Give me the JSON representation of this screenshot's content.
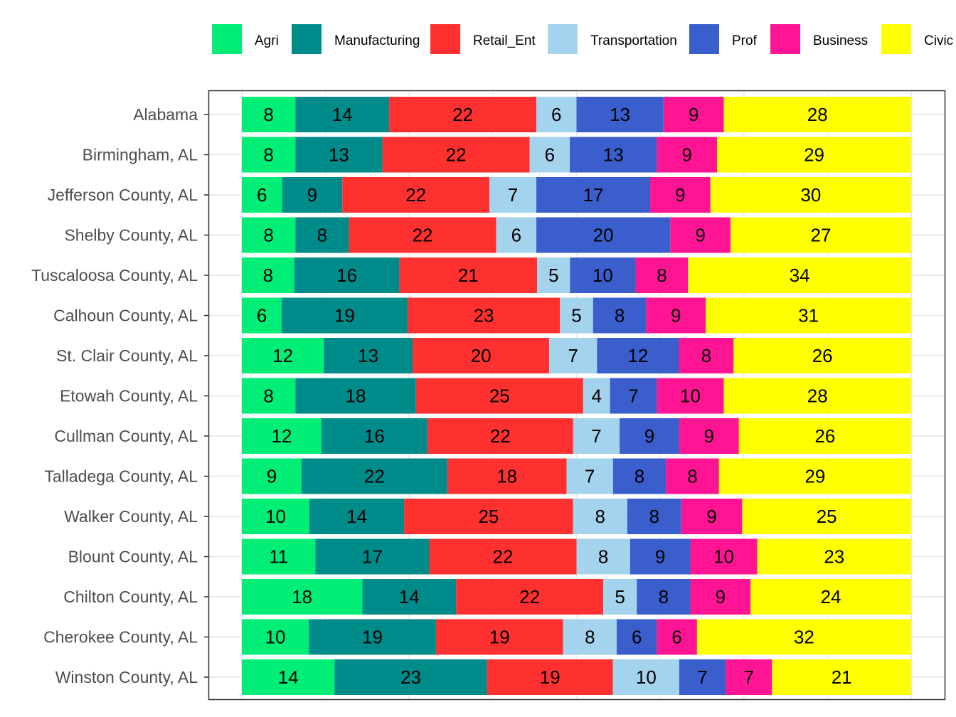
{
  "chart_data": {
    "type": "bar",
    "orientation": "horizontal",
    "stacked": true,
    "normalized": true,
    "grid": true,
    "legend_position": "top",
    "title": "",
    "xlabel": "",
    "ylabel": "",
    "categories": [
      "Alabama",
      "Birmingham, AL",
      "Jefferson County, AL",
      "Shelby County, AL",
      "Tuscaloosa County, AL",
      "Calhoun County, AL",
      "St. Clair County, AL",
      "Etowah County, AL",
      "Cullman County, AL",
      "Talladega County, AL",
      "Walker County, AL",
      "Blount County, AL",
      "Chilton County, AL",
      "Cherokee County, AL",
      "Winston County, AL"
    ],
    "series": [
      {
        "name": "Agri",
        "color": "#00EE76",
        "values": [
          8,
          8,
          6,
          8,
          8,
          6,
          12,
          8,
          12,
          9,
          10,
          11,
          18,
          10,
          14
        ]
      },
      {
        "name": "Manufacturing",
        "color": "#008B8B",
        "values": [
          14,
          13,
          9,
          8,
          16,
          19,
          13,
          18,
          16,
          22,
          14,
          17,
          14,
          19,
          23
        ]
      },
      {
        "name": "Retail_Ent",
        "color": "#FF3030",
        "values": [
          22,
          22,
          22,
          22,
          21,
          23,
          20,
          25,
          22,
          18,
          25,
          22,
          22,
          19,
          19
        ]
      },
      {
        "name": "Transportation",
        "color": "#A4D3EE",
        "values": [
          6,
          6,
          7,
          6,
          5,
          5,
          7,
          4,
          7,
          7,
          8,
          8,
          5,
          8,
          10
        ]
      },
      {
        "name": "Prof",
        "color": "#3A5FCD",
        "values": [
          13,
          13,
          17,
          20,
          10,
          8,
          12,
          7,
          9,
          8,
          8,
          9,
          8,
          6,
          7
        ]
      },
      {
        "name": "Business",
        "color": "#FF1493",
        "values": [
          9,
          9,
          9,
          9,
          8,
          9,
          8,
          10,
          9,
          8,
          9,
          10,
          9,
          6,
          7
        ]
      },
      {
        "name": "Civic",
        "color": "#FFFF00",
        "values": [
          28,
          29,
          30,
          27,
          34,
          31,
          26,
          28,
          26,
          29,
          25,
          23,
          24,
          32,
          21
        ]
      }
    ]
  }
}
